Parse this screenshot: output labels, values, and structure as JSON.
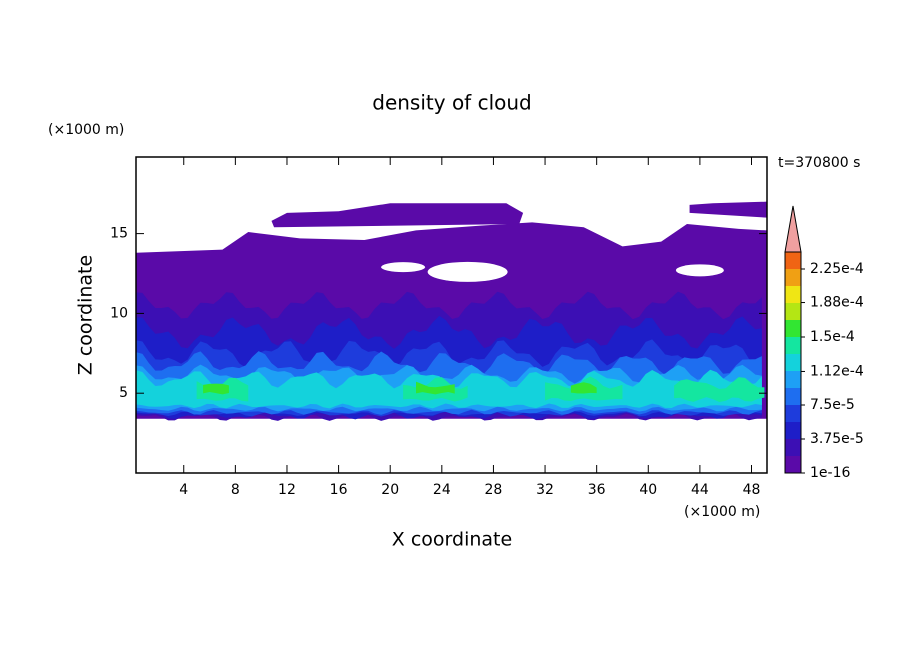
{
  "chart_data": {
    "type": "contour",
    "title": "density of cloud",
    "x_label": "X coordinate",
    "y_label": "Z coordinate",
    "x_unit": "(×1000 m)",
    "y_unit": "(×1000 m)",
    "time_label": "t=370800 s",
    "xlim": [
      0.3,
      49.2
    ],
    "xticks": [
      4,
      8,
      12,
      16,
      20,
      24,
      28,
      32,
      36,
      40,
      44,
      48
    ],
    "ylim": [
      0,
      19.8
    ],
    "yticks": [
      5,
      10,
      15
    ],
    "clim": [
      1e-16,
      0.00024375
    ],
    "colorbar_ticks": [
      {
        "value": 1e-16,
        "label": "1e-16"
      },
      {
        "value": 3.75e-05,
        "label": "3.75e-5"
      },
      {
        "value": 7.5e-05,
        "label": "7.5e-5"
      },
      {
        "value": 0.000112,
        "label": "1.12e-4"
      },
      {
        "value": 0.00015,
        "label": "1.5e-4"
      },
      {
        "value": 0.000188,
        "label": "1.88e-4"
      },
      {
        "value": 0.000225,
        "label": "2.25e-4"
      }
    ],
    "colors": [
      "#5a0aa8",
      "#3c0fb4",
      "#1e1ec8",
      "#1e3cdc",
      "#1e6ef0",
      "#1ea0f5",
      "#14d2dc",
      "#14e6a0",
      "#32e632",
      "#b4e614",
      "#f0e614",
      "#f0a014",
      "#f06414",
      "#e61e1e"
    ],
    "extend_color": "#f0a0a0"
  }
}
